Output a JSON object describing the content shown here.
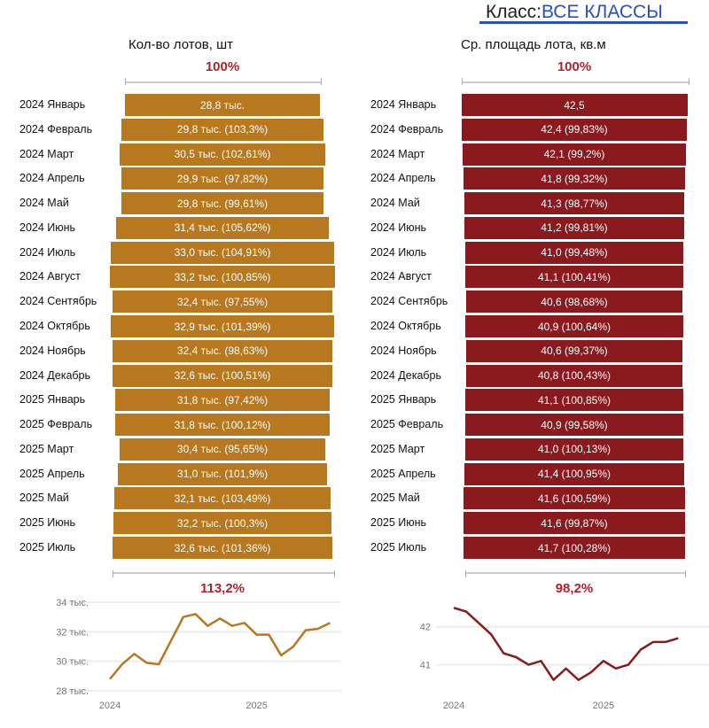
{
  "header": {
    "class_label": "Класс:",
    "class_value": "ВСЕ КЛАССЫ"
  },
  "colors": {
    "left": "#b87820",
    "right": "#8b1a1e",
    "pct": "#b0222a"
  },
  "chart_data": [
    {
      "type": "bar",
      "title": "Кол-во лотов, шт",
      "top_pct": "100%",
      "bottom_pct": "113,2%",
      "categories": [
        "2024 Январь",
        "2024 Февраль",
        "2024 Март",
        "2024 Апрель",
        "2024 Май",
        "2024 Июнь",
        "2024 Июль",
        "2024 Август",
        "2024 Сентябрь",
        "2024 Октябрь",
        "2024 Ноябрь",
        "2024 Декабрь",
        "2025 Январь",
        "2025 Февраль",
        "2025 Март",
        "2025 Апрель",
        "2025 Май",
        "2025 Июнь",
        "2025 Июль"
      ],
      "values": [
        28.8,
        29.8,
        30.5,
        29.9,
        29.8,
        31.4,
        33.0,
        33.2,
        32.4,
        32.9,
        32.4,
        32.6,
        31.8,
        31.8,
        30.4,
        31.0,
        32.1,
        32.2,
        32.6
      ],
      "labels": [
        "28,8 тыс.",
        "29,8 тыс. (103,3%)",
        "30,5 тыс. (102,61%)",
        "29,9 тыс. (97,82%)",
        "29,8 тыс. (99,61%)",
        "31,4 тыс. (105,62%)",
        "33,0 тыс. (104,91%)",
        "33,2 тыс. (100,85%)",
        "32,4 тыс. (97,55%)",
        "32,9 тыс. (101,39%)",
        "32,4 тыс. (98,63%)",
        "32,6 тыс. (100,51%)",
        "31,8 тыс. (97,42%)",
        "31,8 тыс. (100,12%)",
        "30,4 тыс. (95,65%)",
        "31,0 тыс. (101,9%)",
        "32,1 тыс. (103,49%)",
        "32,2 тыс. (100,3%)",
        "32,6 тыс. (101,36%)"
      ],
      "line": {
        "yticks": [
          34,
          32,
          30,
          28
        ],
        "ytick_labels": [
          "34 тыс.",
          "32 тыс.",
          "30 тыс.",
          "28 тыс."
        ],
        "ylim": [
          28,
          34
        ],
        "xtick_labels": [
          "2024",
          "2025"
        ]
      }
    },
    {
      "type": "bar",
      "title": "Ср. площадь лота, кв.м",
      "top_pct": "100%",
      "bottom_pct": "98,2%",
      "categories": [
        "2024 Январь",
        "2024 Февраль",
        "2024 Март",
        "2024 Апрель",
        "2024 Май",
        "2024 Июнь",
        "2024 Июль",
        "2024 Август",
        "2024 Сентябрь",
        "2024 Октябрь",
        "2024 Ноябрь",
        "2024 Декабрь",
        "2025 Январь",
        "2025 Февраль",
        "2025 Март",
        "2025 Апрель",
        "2025 Май",
        "2025 Июнь",
        "2025 Июль"
      ],
      "values": [
        42.5,
        42.4,
        42.1,
        41.8,
        41.3,
        41.2,
        41.0,
        41.1,
        40.6,
        40.9,
        40.6,
        40.8,
        41.1,
        40.9,
        41.0,
        41.4,
        41.6,
        41.6,
        41.7
      ],
      "labels": [
        "42,5",
        "42,4 (99,83%)",
        "42,1 (99,2%)",
        "41,8 (99,32%)",
        "41,3 (98,77%)",
        "41,2 (99,81%)",
        "41,0 (99,48%)",
        "41,1 (100,41%)",
        "40,6 (98,68%)",
        "40,9 (100,64%)",
        "40,6 (99,37%)",
        "40,8 (100,43%)",
        "41,1 (100,85%)",
        "40,9 (99,58%)",
        "41,0 (100,13%)",
        "41,4 (100,95%)",
        "41,6 (100,59%)",
        "41,6 (99,87%)",
        "41,7 (100,28%)"
      ],
      "line": {
        "yticks": [
          42,
          41
        ],
        "ytick_labels": [
          "42",
          "41"
        ],
        "ylim": [
          40.5,
          42.6
        ],
        "xtick_labels": [
          "2024",
          "2025"
        ]
      }
    }
  ]
}
